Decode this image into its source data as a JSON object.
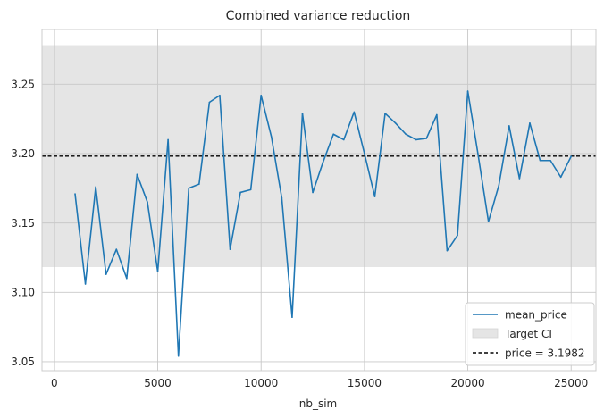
{
  "chart_data": {
    "type": "line",
    "title": "Combined variance reduction",
    "xlabel": "nb_sim",
    "ylabel": "",
    "xlim": [
      -600,
      26200
    ],
    "ylim": [
      3.0435,
      3.2895
    ],
    "xticks": [
      0,
      5000,
      10000,
      15000,
      20000,
      25000
    ],
    "yticks": [
      3.05,
      3.1,
      3.15,
      3.2,
      3.25
    ],
    "ytick_labels": [
      "3.05",
      "3.10",
      "3.15",
      "3.20",
      "3.25"
    ],
    "grid": true,
    "legend_position": "lower-right",
    "series": [
      {
        "name": "mean_price",
        "color": "#1f77b4",
        "x": [
          1000,
          1500,
          2000,
          2500,
          3000,
          3500,
          4000,
          4500,
          5000,
          5500,
          6000,
          6500,
          7000,
          7500,
          8000,
          8500,
          9000,
          9500,
          10000,
          10500,
          11000,
          11500,
          12000,
          12500,
          13000,
          13500,
          14000,
          14500,
          15000,
          15500,
          16000,
          16500,
          17000,
          17500,
          18000,
          18500,
          19000,
          19500,
          20000,
          20500,
          21000,
          21500,
          22000,
          22500,
          23000,
          23500,
          24000,
          24500,
          25000
        ],
        "y": [
          3.171,
          3.106,
          3.176,
          3.113,
          3.131,
          3.11,
          3.185,
          3.165,
          3.115,
          3.21,
          3.054,
          3.175,
          3.178,
          3.237,
          3.242,
          3.131,
          3.172,
          3.174,
          3.242,
          3.212,
          3.168,
          3.082,
          3.229,
          3.172,
          3.194,
          3.214,
          3.21,
          3.23,
          3.2,
          3.169,
          3.229,
          3.222,
          3.214,
          3.21,
          3.211,
          3.228,
          3.13,
          3.141,
          3.245,
          3.199,
          3.151,
          3.177,
          3.22,
          3.182,
          3.222,
          3.195,
          3.195,
          3.183,
          3.198
        ]
      }
    ],
    "target_ci": {
      "name": "Target CI",
      "low": 3.1182,
      "high": 3.2782,
      "color": "#e5e5e5"
    },
    "reference_line": {
      "name": "price = 3.1982",
      "value": 3.1982,
      "color": "#000000"
    }
  }
}
